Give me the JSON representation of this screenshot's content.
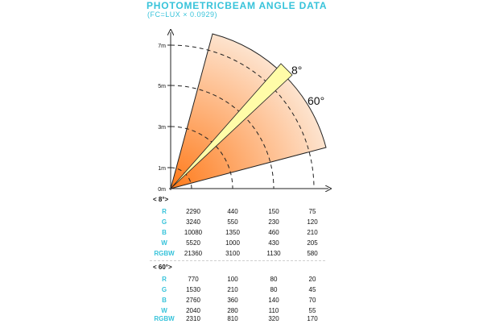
{
  "header": {
    "title": "PHOTOMETRICBEAM ANGLE DATA",
    "subtitle": "(FC=LUX × 0.0929)"
  },
  "diagram": {
    "y_axis_labels": [
      "7m",
      "5m",
      "3m",
      "1m",
      "0m"
    ],
    "narrow_beam_label": "8°",
    "wide_beam_label": "60°",
    "colors": {
      "wide_beam_inner": "#ff7a1a",
      "wide_beam_outer": "#fde9d8",
      "narrow_beam": "#fffca8",
      "axis": "#222222",
      "arc": "#222222"
    }
  },
  "tables": [
    {
      "label": "< 8°>",
      "rows": [
        {
          "label": "R",
          "values": [
            "2290",
            "440",
            "150",
            "75"
          ]
        },
        {
          "label": "G",
          "values": [
            "3240",
            "550",
            "230",
            "120"
          ]
        },
        {
          "label": "B",
          "values": [
            "10080",
            "1350",
            "460",
            "210"
          ]
        },
        {
          "label": "W",
          "values": [
            "5520",
            "1000",
            "430",
            "205"
          ]
        },
        {
          "label": "RGBW",
          "values": [
            "21360",
            "3100",
            "1130",
            "580"
          ]
        }
      ]
    },
    {
      "label": "< 60°>",
      "rows": [
        {
          "label": "R",
          "values": [
            "770",
            "100",
            "80",
            "20"
          ]
        },
        {
          "label": "G",
          "values": [
            "1530",
            "210",
            "80",
            "45"
          ]
        },
        {
          "label": "B",
          "values": [
            "2760",
            "360",
            "140",
            "70"
          ]
        },
        {
          "label": "W",
          "values": [
            "2040",
            "280",
            "110",
            "55"
          ]
        },
        {
          "label": "RGBW",
          "values": [
            "2310",
            "810",
            "320",
            "170"
          ]
        }
      ]
    }
  ]
}
